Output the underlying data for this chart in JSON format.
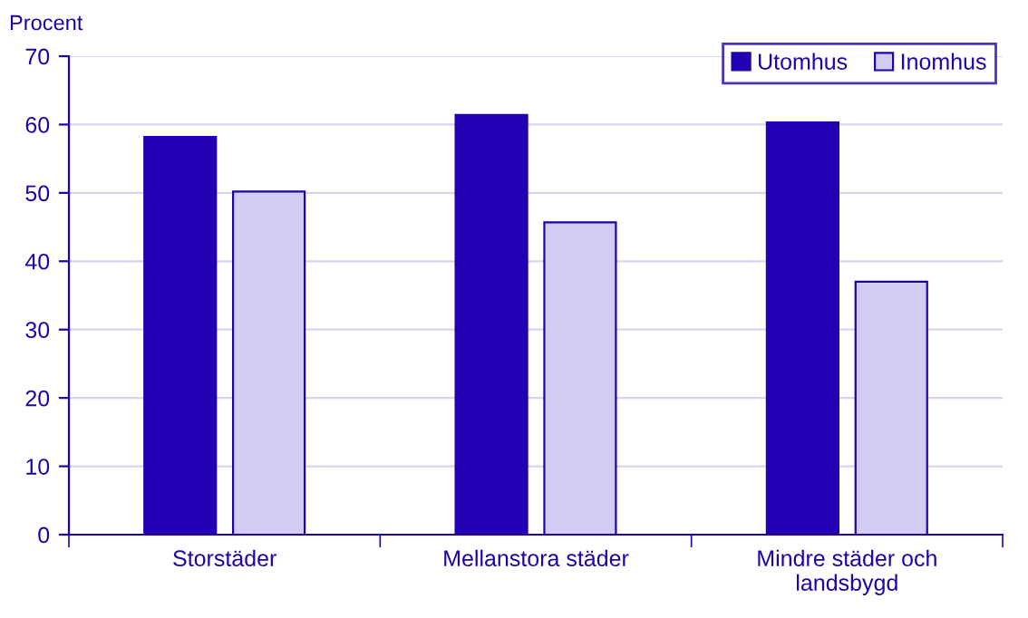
{
  "chart_data": {
    "type": "bar",
    "ylabel": "Procent",
    "categories": [
      "Storstäder",
      "Mellanstora städer",
      "Mindre städer och\nlandsbygd"
    ],
    "series": [
      {
        "name": "Utomhus",
        "color": "#2200b4",
        "values": [
          58.2,
          61.4,
          60.3
        ]
      },
      {
        "name": "Inomhus",
        "color": "#d2ccf0",
        "values": [
          50.2,
          45.7,
          37.0
        ]
      }
    ],
    "ylim": [
      0,
      70
    ],
    "yticks": [
      0,
      10,
      20,
      30,
      40,
      50,
      60,
      70
    ],
    "grid": "y",
    "legend": "top right"
  }
}
